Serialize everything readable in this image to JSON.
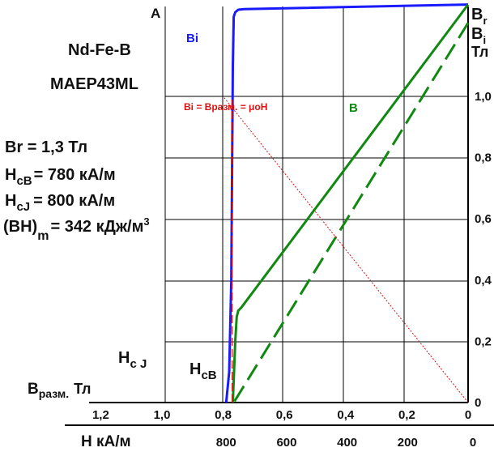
{
  "chart_data": {
    "type": "line",
    "title": "Nd-Fe-B",
    "subtitle": "MAEP43ML",
    "series": [
      {
        "name": "Bi",
        "color": "#1a1aff",
        "style": "solid",
        "points": [
          [
            0,
            1.3
          ],
          [
            740,
            1.285
          ],
          [
            760,
            1.283
          ],
          [
            770,
            1.275
          ],
          [
            775,
            1.26
          ],
          [
            778,
            1.1
          ],
          [
            780,
            0.8
          ],
          [
            783,
            0.4
          ],
          [
            790,
            0.1
          ],
          [
            800,
            0.0
          ]
        ]
      },
      {
        "name": "B",
        "color": "#118811",
        "style": "solid",
        "points": [
          [
            0,
            1.3
          ],
          [
            750,
            0.31
          ],
          [
            760,
            0.3
          ],
          [
            765,
            0.28
          ],
          [
            770,
            0.2
          ],
          [
            774,
            0.1
          ],
          [
            778,
            0.0
          ]
        ]
      },
      {
        "name": "",
        "color": "#118811",
        "style": "dashed",
        "points": [
          [
            0,
            1.24
          ],
          [
            775,
            0.0
          ]
        ]
      },
      {
        "name": "",
        "color": "#dd1111",
        "style": "dotted",
        "points": [
          [
            0,
            0.0
          ],
          [
            810,
            1.0
          ]
        ]
      },
      {
        "name": "",
        "color": "#dd1111",
        "style": "dashed",
        "points": [
          [
            780,
            0.0
          ],
          [
            780,
            1.0
          ]
        ]
      }
    ],
    "x_axis": {
      "label": "H  кА/м",
      "ticks": [
        "800",
        "600",
        "400",
        "200",
        "0"
      ],
      "tick_values": [
        800,
        600,
        400,
        200,
        0
      ],
      "range": [
        0,
        1130
      ],
      "reversed": true
    },
    "x2_axis": {
      "label": "Вразм. Тл",
      "ticks": [
        "1,2",
        "1,0",
        "0,8",
        "0,6",
        "0,4",
        "0,2",
        "0"
      ],
      "tick_values": [
        1.2,
        1.0,
        0.8,
        0.6,
        0.4,
        0.2,
        0.0
      ]
    },
    "y_axis": {
      "label": "Тл",
      "ticks": [
        "1,0",
        "0,8",
        "0,6",
        "0,4",
        "0,2",
        "0"
      ],
      "tick_values": [
        1.0,
        0.8,
        0.6,
        0.4,
        0.2,
        0.0
      ],
      "range": [
        0,
        1.3
      ]
    },
    "annotations": {
      "point_a": "A",
      "bi_label": "Bi",
      "b_label": "B",
      "br_top": "B",
      "br_sub": "r",
      "bi_right": "B",
      "bi_right_sub": "i",
      "formula": "Bi = Bразм. = μoH",
      "hcj_main": "H",
      "hcj_sub": "c J",
      "hcb_main": "H",
      "hcb_sub": "cB",
      "brazm_main": "B",
      "brazm_sub": "разм.",
      "brazm_unit": "Тл"
    },
    "properties": {
      "br": "Br =  1,3  Тл",
      "hcb_main": "H",
      "hcb_sub": "cB",
      "hcb_value": "= 780  кА/м",
      "hcj_main": "H",
      "hcj_sub": "cJ",
      "hcj_value": "=  800 кА/м",
      "bhmax_main": "(BH)",
      "bhmax_sub": "m",
      "bhmax_value": "= 342 кДж/м",
      "bhmax_sup": "3"
    },
    "grid": true,
    "legend": "none"
  }
}
